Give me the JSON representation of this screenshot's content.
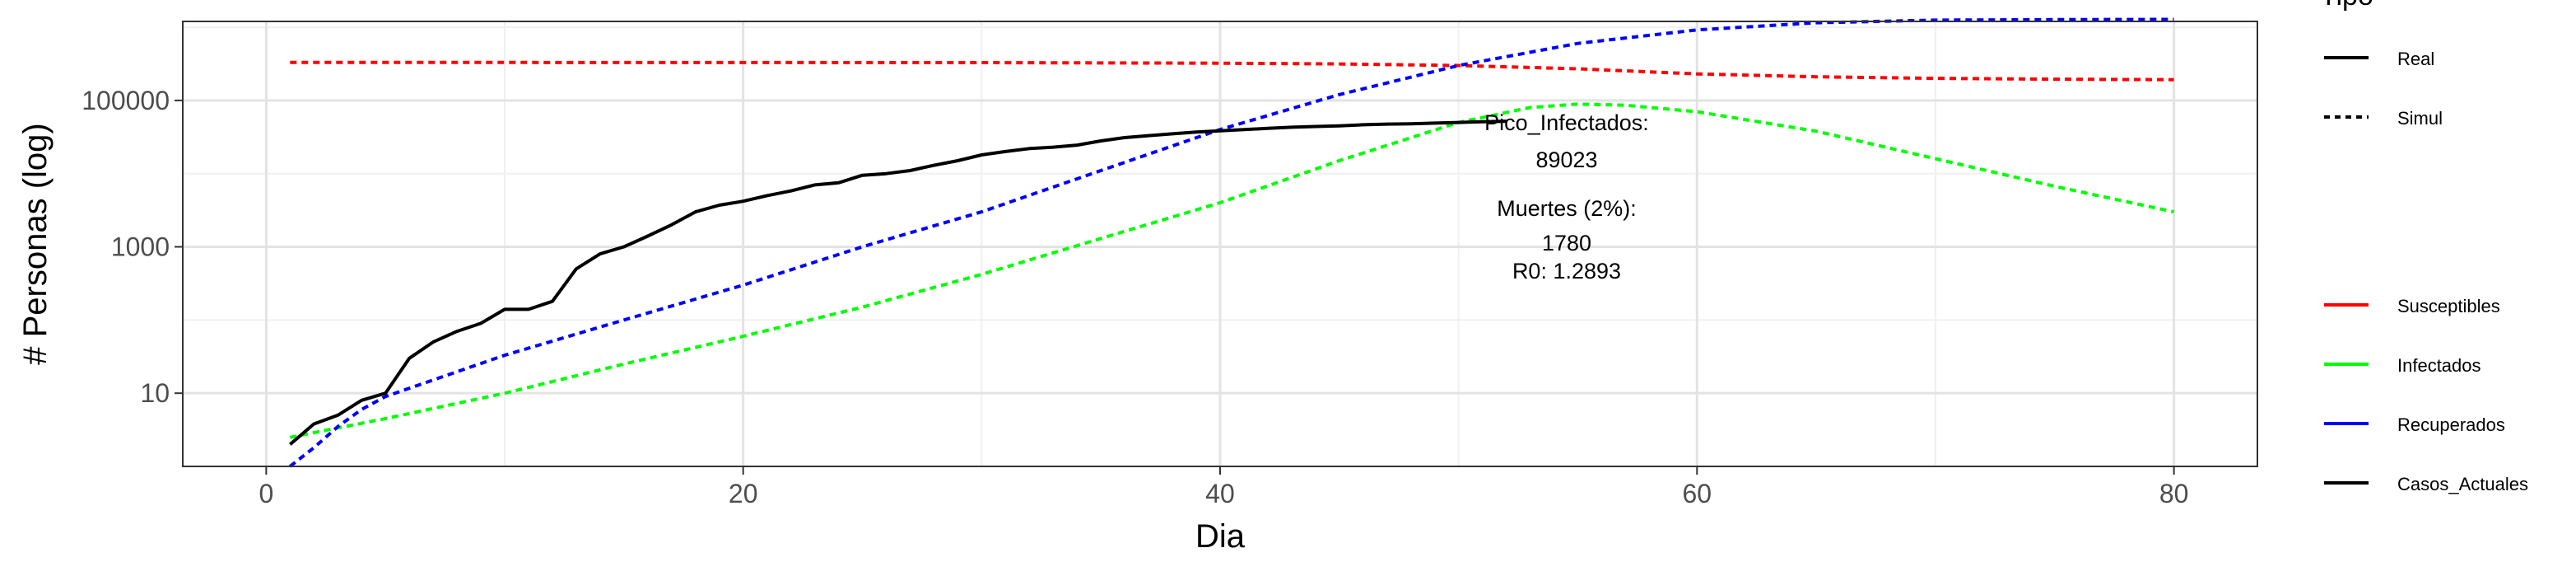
{
  "chart_data": {
    "type": "line",
    "title": "",
    "xlabel": "Dia",
    "ylabel": "# Personas (log)",
    "y_scale": "log10",
    "xlim": [
      -3.5,
      83.5
    ],
    "ylim": [
      1,
      1200000
    ],
    "x_ticks": [
      0,
      20,
      40,
      60,
      80
    ],
    "x_tick_labels": [
      "0",
      "20",
      "40",
      "60",
      "80"
    ],
    "y_ticks": [
      10,
      1000,
      100000
    ],
    "y_tick_labels": [
      "10",
      "1000",
      "100000"
    ],
    "grid": true,
    "legend_position": "right",
    "legend_linetype": {
      "title": "Tipo",
      "items": [
        {
          "label": "Real",
          "dash": "solid"
        },
        {
          "label": "Simul",
          "dash": "dotted"
        }
      ]
    },
    "legend_color": {
      "items": [
        {
          "label": "Susceptibles",
          "color": "#ff0000"
        },
        {
          "label": "Infectados",
          "color": "#00ff00"
        },
        {
          "label": "Recuperados",
          "color": "#0000ff"
        },
        {
          "label": "Casos_Actuales",
          "color": "#000000"
        }
      ]
    },
    "series": [
      {
        "name": "Susceptibles",
        "linetype": "Simul",
        "color": "#ff0000",
        "x": [
          1,
          10,
          20,
          30,
          40,
          45,
          50,
          55,
          60,
          65,
          70,
          75,
          80
        ],
        "y": [
          330000,
          330000,
          329000,
          328000,
          322000,
          315000,
          300000,
          270000,
          230000,
          210000,
          200000,
          195000,
          192000
        ]
      },
      {
        "name": "Infectados",
        "linetype": "Simul",
        "color": "#00ff00",
        "x": [
          1,
          5,
          10,
          15,
          20,
          25,
          30,
          35,
          40,
          45,
          50,
          53,
          55,
          57,
          60,
          65,
          70,
          75,
          80
        ],
        "y": [
          2.5,
          4.5,
          10,
          25,
          60,
          150,
          420,
          1300,
          4000,
          15000,
          50000,
          80000,
          89023,
          86000,
          70000,
          38000,
          16000,
          6700,
          3000
        ]
      },
      {
        "name": "Recuperados",
        "linetype": "Simul",
        "color": "#0000ff",
        "x": [
          1,
          2,
          3,
          4,
          5,
          10,
          15,
          20,
          25,
          30,
          35,
          40,
          45,
          50,
          55,
          60,
          65,
          70,
          75,
          80
        ],
        "y": [
          1,
          1.8,
          3.5,
          6,
          9,
          33,
          100,
          300,
          1000,
          3000,
          11000,
          40000,
          120000,
          300000,
          600000,
          920000,
          1150000,
          1250000,
          1270000,
          1280000
        ]
      },
      {
        "name": "Casos_Actuales",
        "linetype": "Real",
        "color": "#000000",
        "x": [
          1,
          2,
          3,
          4,
          5,
          6,
          7,
          8,
          9,
          10,
          11,
          12,
          13,
          14,
          15,
          16,
          17,
          18,
          19,
          20,
          21,
          22,
          23,
          24,
          25,
          26,
          27,
          28,
          29,
          30,
          31,
          32,
          33,
          34,
          35,
          36,
          37,
          38,
          39,
          40,
          41,
          42,
          43,
          44,
          45,
          46,
          47,
          48,
          49,
          50,
          51,
          52
        ],
        "y": [
          2,
          3.8,
          5,
          8,
          10,
          30,
          50,
          70,
          90,
          140,
          140,
          180,
          500,
          800,
          1000,
          1400,
          2000,
          3000,
          3700,
          4200,
          5000,
          5800,
          7000,
          7500,
          9500,
          10000,
          11000,
          13000,
          15000,
          18000,
          20000,
          22000,
          23000,
          24500,
          28000,
          31000,
          33000,
          35000,
          37000,
          38500,
          40000,
          41500,
          43000,
          44000,
          45000,
          46500,
          47500,
          48000,
          49000,
          50000,
          51000,
          52000
        ]
      }
    ],
    "annotations": [
      {
        "lines": [
          "Pico_Infectados:",
          "89023"
        ]
      },
      {
        "lines": [
          "Muertes (2%):",
          "1780",
          "R0: 1.2893"
        ]
      }
    ]
  }
}
